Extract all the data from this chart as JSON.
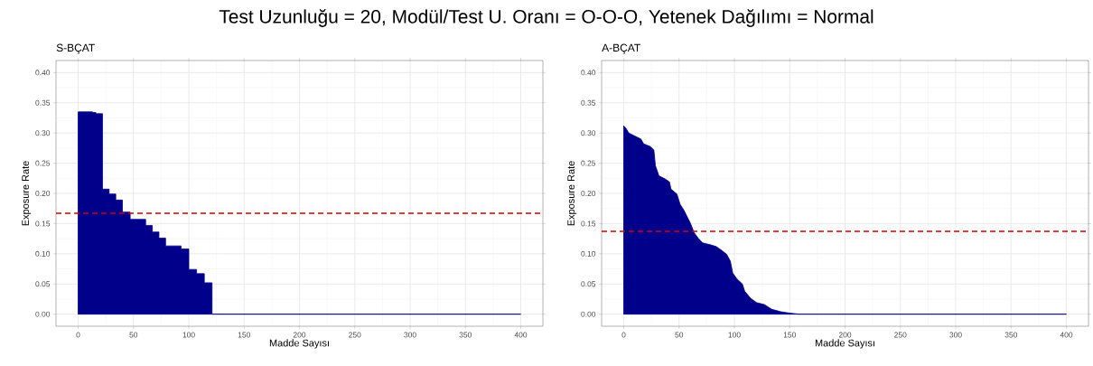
{
  "chart_data": [
    {
      "type": "area",
      "title": "Test Uzunluğu = 20,    Modül/Test U. Oranı = O-O-O,    Yetenek Dağılımı = Normal",
      "subtitle": "S-BÇAT",
      "xlabel": "Madde Sayısı",
      "ylabel": "Exposure Rate",
      "x": [
        0,
        13,
        13,
        16,
        16,
        22,
        22,
        28,
        28,
        34,
        34,
        40,
        40,
        47,
        47,
        61,
        61,
        67,
        67,
        73,
        73,
        79,
        79,
        93,
        93,
        100,
        100,
        107,
        107,
        114,
        114,
        121,
        121,
        400
      ],
      "values": [
        0.335,
        0.335,
        0.334,
        0.334,
        0.332,
        0.332,
        0.207,
        0.207,
        0.199,
        0.199,
        0.189,
        0.189,
        0.169,
        0.169,
        0.157,
        0.157,
        0.147,
        0.147,
        0.136,
        0.136,
        0.126,
        0.126,
        0.113,
        0.113,
        0.108,
        0.108,
        0.074,
        0.074,
        0.067,
        0.067,
        0.052,
        0.052,
        0,
        0
      ],
      "color": "#00008b",
      "xlim": [
        -20,
        420
      ],
      "ylim": [
        -0.02,
        0.42
      ],
      "xticks": [
        0,
        50,
        100,
        150,
        200,
        250,
        300,
        350,
        400
      ],
      "yticks": [
        {
          "value": 0,
          "label": "0.00"
        },
        {
          "value": 0.05,
          "label": "0.05"
        },
        {
          "value": 0.1,
          "label": "0.10"
        },
        {
          "value": 0.15,
          "label": "0.15"
        },
        {
          "value": 0.2,
          "label": "0.20"
        },
        {
          "value": 0.25,
          "label": "0.25"
        },
        {
          "value": 0.3,
          "label": "0.30"
        },
        {
          "value": 0.35,
          "label": "0.35"
        },
        {
          "value": 0.4,
          "label": "0.40"
        }
      ],
      "grid": true,
      "ref_lines": [
        {
          "axis": "y",
          "value": 0.167,
          "color": "#cc0000",
          "line_style": "dashed"
        }
      ]
    },
    {
      "type": "area",
      "subtitle": "A-BÇAT",
      "xlabel": "Madde Sayısı",
      "ylabel": "Exposure Rate",
      "x": [
        0,
        1.9,
        4.6,
        10,
        15.5,
        18,
        23.7,
        27.2,
        28.6,
        31.8,
        37.3,
        41.3,
        42.7,
        48,
        50.9,
        54.4,
        57.7,
        60.4,
        63.6,
        67.2,
        71.3,
        78,
        83.5,
        89,
        93,
        96.3,
        98.5,
        102.5,
        107.2,
        109.3,
        114.8,
        120.2,
        127,
        133.8,
        142,
        148.8,
        158.3,
        400
      ],
      "values": [
        0.312,
        0.308,
        0.3,
        0.295,
        0.29,
        0.282,
        0.278,
        0.272,
        0.246,
        0.229,
        0.224,
        0.219,
        0.207,
        0.199,
        0.182,
        0.172,
        0.16,
        0.15,
        0.135,
        0.126,
        0.118,
        0.115,
        0.112,
        0.105,
        0.099,
        0.088,
        0.068,
        0.058,
        0.05,
        0.038,
        0.026,
        0.019,
        0.016,
        0.008,
        0.004,
        0.002,
        0,
        0
      ],
      "color": "#00008b",
      "xlim": [
        -20,
        420
      ],
      "ylim": [
        -0.02,
        0.42
      ],
      "xticks": [
        0,
        50,
        100,
        150,
        200,
        250,
        300,
        350,
        400
      ],
      "yticks": [
        {
          "value": 0,
          "label": "0.00"
        },
        {
          "value": 0.05,
          "label": "0.05"
        },
        {
          "value": 0.1,
          "label": "0.10"
        },
        {
          "value": 0.15,
          "label": "0.15"
        },
        {
          "value": 0.2,
          "label": "0.20"
        },
        {
          "value": 0.25,
          "label": "0.25"
        },
        {
          "value": 0.3,
          "label": "0.30"
        },
        {
          "value": 0.35,
          "label": "0.35"
        },
        {
          "value": 0.4,
          "label": "0.40"
        }
      ],
      "grid": true,
      "ref_lines": [
        {
          "axis": "y",
          "value": 0.137,
          "color": "#cc0000",
          "line_style": "dashed"
        }
      ]
    }
  ]
}
